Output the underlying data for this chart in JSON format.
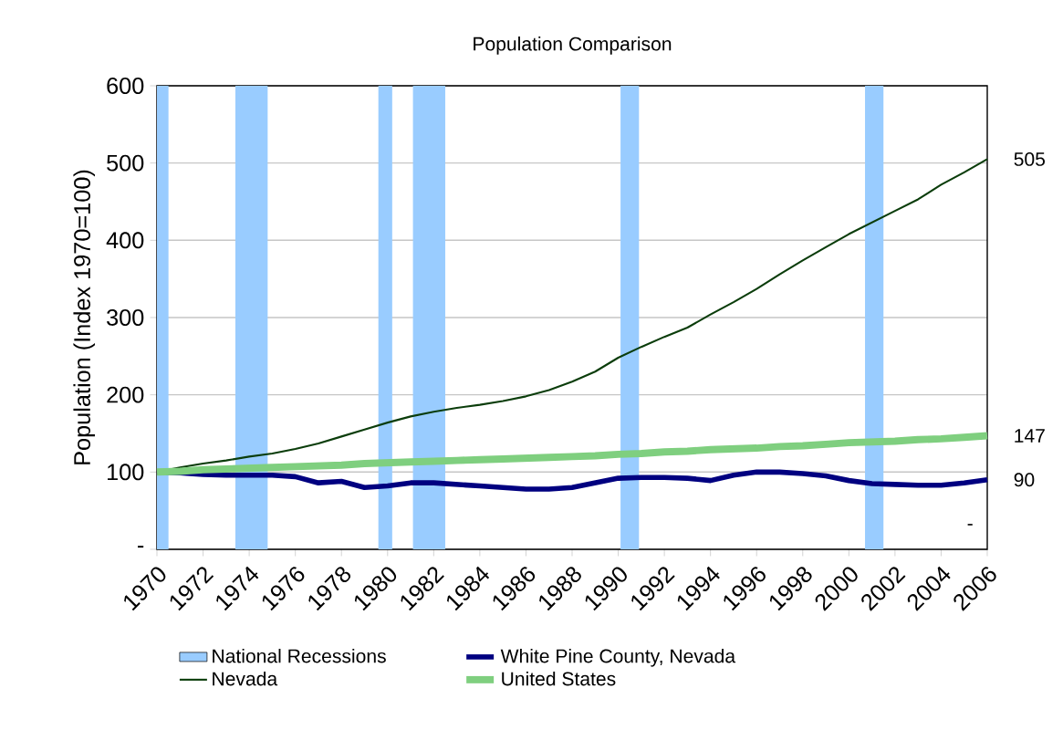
{
  "chart_data": {
    "type": "line",
    "title": "Population Comparison",
    "ylabel": "Population (Index 1970=100)",
    "x": [
      1970,
      1971,
      1972,
      1973,
      1974,
      1975,
      1976,
      1977,
      1978,
      1979,
      1980,
      1981,
      1982,
      1983,
      1984,
      1985,
      1986,
      1987,
      1988,
      1989,
      1990,
      1991,
      1992,
      1993,
      1994,
      1995,
      1996,
      1997,
      1998,
      1999,
      2000,
      2001,
      2002,
      2003,
      2004,
      2005,
      2006
    ],
    "series": [
      {
        "name": "White Pine County, Nevada",
        "color": "#000080",
        "values": [
          100,
          99,
          97,
          96,
          96,
          96,
          94,
          86,
          88,
          80,
          82,
          86,
          86,
          84,
          82,
          80,
          78,
          78,
          80,
          86,
          92,
          93,
          93,
          92,
          89,
          96,
          100,
          100,
          98,
          95,
          89,
          85,
          84,
          83,
          83,
          86,
          90
        ],
        "value_labels": [
          null,
          null,
          null,
          null,
          null,
          null,
          null,
          null,
          null,
          null,
          null,
          null,
          null,
          null,
          null,
          null,
          null,
          null,
          null,
          null,
          null,
          null,
          null,
          null,
          null,
          null,
          null,
          null,
          null,
          null,
          null,
          null,
          null,
          null,
          null,
          null,
          "90"
        ]
      },
      {
        "name": "Nevada",
        "color": "#0b3d0b",
        "values": [
          100,
          106,
          111,
          115,
          120,
          124,
          130,
          137,
          146,
          155,
          164,
          172,
          178,
          183,
          187,
          192,
          198,
          206,
          217,
          230,
          248,
          262,
          275,
          287,
          304,
          320,
          337,
          356,
          374,
          391,
          408,
          423,
          438,
          453,
          472,
          488,
          505
        ],
        "value_labels": [
          null,
          null,
          null,
          null,
          null,
          null,
          null,
          null,
          null,
          null,
          null,
          null,
          null,
          null,
          null,
          null,
          null,
          null,
          null,
          null,
          null,
          null,
          null,
          null,
          null,
          null,
          null,
          null,
          null,
          null,
          null,
          null,
          null,
          null,
          null,
          null,
          "505"
        ]
      },
      {
        "name": "United States",
        "color": "#7fcf7f",
        "values": [
          100,
          101,
          103,
          104,
          105,
          106,
          107,
          108,
          109,
          111,
          112,
          113,
          114,
          115,
          116,
          117,
          118,
          119,
          120,
          121,
          123,
          124,
          126,
          127,
          129,
          130,
          131,
          133,
          134,
          136,
          138,
          139,
          140,
          142,
          143,
          145,
          147
        ],
        "value_labels": [
          null,
          null,
          null,
          null,
          null,
          null,
          null,
          null,
          null,
          null,
          null,
          null,
          null,
          null,
          null,
          null,
          null,
          null,
          null,
          null,
          null,
          null,
          null,
          null,
          null,
          null,
          null,
          null,
          null,
          null,
          null,
          null,
          null,
          null,
          null,
          null,
          "147"
        ]
      }
    ],
    "bands": [
      {
        "axis": "x",
        "from": 1970,
        "to": 1970.5,
        "label": "National Recessions",
        "color": "#99ccff"
      },
      {
        "axis": "x",
        "from": 1973.4,
        "to": 1974.8,
        "color": "#99ccff"
      },
      {
        "axis": "x",
        "from": 1979.6,
        "to": 1980.2,
        "color": "#99ccff"
      },
      {
        "axis": "x",
        "from": 1981.1,
        "to": 1982.5,
        "color": "#99ccff"
      },
      {
        "axis": "x",
        "from": 1990.1,
        "to": 1990.9,
        "color": "#99ccff"
      },
      {
        "axis": "x",
        "from": 2000.7,
        "to": 2001.5,
        "color": "#99ccff"
      }
    ],
    "annotations": [
      "-"
    ],
    "xlim": [
      1970,
      2006
    ],
    "ylim": [
      0,
      600
    ],
    "xticks": [
      1970,
      1972,
      1974,
      1976,
      1978,
      1980,
      1982,
      1984,
      1986,
      1988,
      1990,
      1992,
      1994,
      1996,
      1998,
      2000,
      2002,
      2004,
      2006
    ],
    "yticks": [
      {
        "value": 0,
        "label": "-"
      },
      100,
      200,
      300,
      400,
      500,
      600
    ],
    "grid": "y",
    "legend": "bottom",
    "marker": "none",
    "line_style": "solid"
  }
}
